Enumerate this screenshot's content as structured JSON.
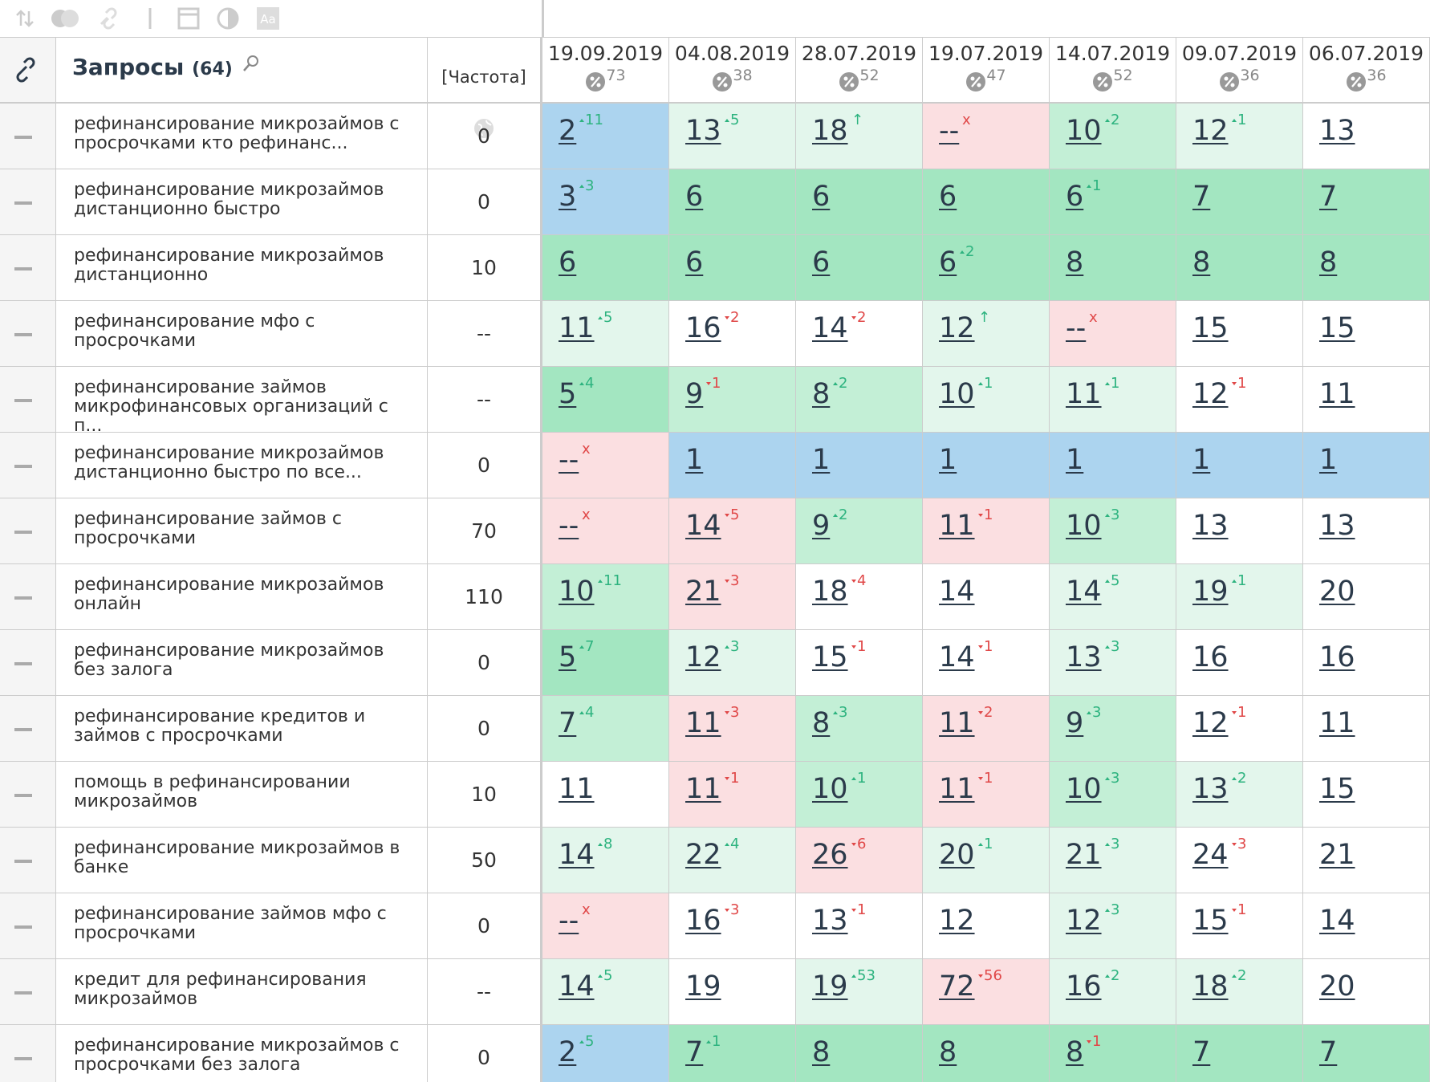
{
  "toolbar": {
    "font_icon": "Aa"
  },
  "header": {
    "queries": "Запросы",
    "count": "(64)",
    "frequency": "[Частота]",
    "dates": [
      {
        "date": "19.09.2019",
        "percent": 73
      },
      {
        "date": "04.08.2019",
        "percent": 38
      },
      {
        "date": "28.07.2019",
        "percent": 52
      },
      {
        "date": "19.07.2019",
        "percent": 47
      },
      {
        "date": "14.07.2019",
        "percent": 52
      },
      {
        "date": "09.07.2019",
        "percent": 36
      },
      {
        "date": "06.07.2019",
        "percent": 36
      }
    ]
  },
  "rows": [
    {
      "query": "рефинансирование микрозаймов с просрочками кто рефинанс...",
      "frequency": 0,
      "cells": [
        {
          "pos": 2,
          "change": 11,
          "dir": "up",
          "bg": "blue"
        },
        {
          "pos": 13,
          "change": 5,
          "dir": "up",
          "bg": "light"
        },
        {
          "pos": 18,
          "change": "↑",
          "dir": "up",
          "bg": "light"
        },
        {
          "pos": "--",
          "change": "x",
          "dir": "down",
          "bg": "red"
        },
        {
          "pos": 10,
          "change": 2,
          "dir": "up",
          "bg": "mid"
        },
        {
          "pos": 12,
          "change": 1,
          "dir": "up",
          "bg": "light"
        },
        {
          "pos": 13,
          "bg": "white"
        }
      ]
    },
    {
      "query": "рефинансирование микрозаймов дистанционно быстро",
      "frequency": 0,
      "cells": [
        {
          "pos": 3,
          "change": 3,
          "dir": "up",
          "bg": "blue"
        },
        {
          "pos": 6,
          "bg": "dark"
        },
        {
          "pos": 6,
          "bg": "dark"
        },
        {
          "pos": 6,
          "bg": "dark"
        },
        {
          "pos": 6,
          "change": 1,
          "dir": "up",
          "bg": "dark"
        },
        {
          "pos": 7,
          "bg": "dark"
        },
        {
          "pos": 7,
          "bg": "dark"
        }
      ]
    },
    {
      "query": "рефинансирование микрозаймов дистанционно",
      "frequency": 10,
      "cells": [
        {
          "pos": 6,
          "bg": "dark"
        },
        {
          "pos": 6,
          "bg": "dark"
        },
        {
          "pos": 6,
          "bg": "dark"
        },
        {
          "pos": 6,
          "change": 2,
          "dir": "up",
          "bg": "dark"
        },
        {
          "pos": 8,
          "bg": "dark"
        },
        {
          "pos": 8,
          "bg": "dark"
        },
        {
          "pos": 8,
          "bg": "dark"
        }
      ]
    },
    {
      "query": "рефинансирование мфо с просрочками",
      "frequency": "--",
      "cells": [
        {
          "pos": 11,
          "change": 5,
          "dir": "up",
          "bg": "light"
        },
        {
          "pos": 16,
          "change": 2,
          "dir": "down",
          "bg": "white"
        },
        {
          "pos": 14,
          "change": 2,
          "dir": "down",
          "bg": "white"
        },
        {
          "pos": 12,
          "change": "↑",
          "dir": "up",
          "bg": "light"
        },
        {
          "pos": "--",
          "change": "x",
          "dir": "down",
          "bg": "red"
        },
        {
          "pos": 15,
          "bg": "white"
        },
        {
          "pos": 15,
          "bg": "white"
        }
      ]
    },
    {
      "query": "рефинансирование займов микрофинансовых организаций с п...",
      "frequency": "--",
      "cells": [
        {
          "pos": 5,
          "change": 4,
          "dir": "up",
          "bg": "dark"
        },
        {
          "pos": 9,
          "change": 1,
          "dir": "down",
          "bg": "mid"
        },
        {
          "pos": 8,
          "change": 2,
          "dir": "up",
          "bg": "mid"
        },
        {
          "pos": 10,
          "change": 1,
          "dir": "up",
          "bg": "light"
        },
        {
          "pos": 11,
          "change": 1,
          "dir": "up",
          "bg": "light"
        },
        {
          "pos": 12,
          "change": 1,
          "dir": "down",
          "bg": "white"
        },
        {
          "pos": 11,
          "bg": "white"
        }
      ]
    },
    {
      "query": "рефинансирование микрозаймов дистанционно быстро по все...",
      "frequency": 0,
      "cells": [
        {
          "pos": "--",
          "change": "x",
          "dir": "down",
          "bg": "red"
        },
        {
          "pos": 1,
          "bg": "blue"
        },
        {
          "pos": 1,
          "bg": "blue"
        },
        {
          "pos": 1,
          "bg": "blue"
        },
        {
          "pos": 1,
          "bg": "blue"
        },
        {
          "pos": 1,
          "bg": "blue"
        },
        {
          "pos": 1,
          "bg": "blue"
        }
      ]
    },
    {
      "query": "рефинансирование займов с просрочками",
      "frequency": 70,
      "cells": [
        {
          "pos": "--",
          "change": "x",
          "dir": "down",
          "bg": "red"
        },
        {
          "pos": 14,
          "change": 5,
          "dir": "down",
          "bg": "red"
        },
        {
          "pos": 9,
          "change": 2,
          "dir": "up",
          "bg": "mid"
        },
        {
          "pos": 11,
          "change": 1,
          "dir": "down",
          "bg": "red"
        },
        {
          "pos": 10,
          "change": 3,
          "dir": "up",
          "bg": "mid"
        },
        {
          "pos": 13,
          "bg": "white"
        },
        {
          "pos": 13,
          "bg": "white"
        }
      ]
    },
    {
      "query": "рефинансирование микрозаймов онлайн",
      "frequency": 110,
      "cells": [
        {
          "pos": 10,
          "change": 11,
          "dir": "up",
          "bg": "mid"
        },
        {
          "pos": 21,
          "change": 3,
          "dir": "down",
          "bg": "red"
        },
        {
          "pos": 18,
          "change": 4,
          "dir": "down",
          "bg": "white"
        },
        {
          "pos": 14,
          "bg": "white"
        },
        {
          "pos": 14,
          "change": 5,
          "dir": "up",
          "bg": "light"
        },
        {
          "pos": 19,
          "change": 1,
          "dir": "up",
          "bg": "light"
        },
        {
          "pos": 20,
          "bg": "white"
        }
      ]
    },
    {
      "query": "рефинансирование микрозаймов без залога",
      "frequency": 0,
      "cells": [
        {
          "pos": 5,
          "change": 7,
          "dir": "up",
          "bg": "dark"
        },
        {
          "pos": 12,
          "change": 3,
          "dir": "up",
          "bg": "light"
        },
        {
          "pos": 15,
          "change": 1,
          "dir": "down",
          "bg": "white"
        },
        {
          "pos": 14,
          "change": 1,
          "dir": "down",
          "bg": "white"
        },
        {
          "pos": 13,
          "change": 3,
          "dir": "up",
          "bg": "light"
        },
        {
          "pos": 16,
          "bg": "white"
        },
        {
          "pos": 16,
          "bg": "white"
        }
      ]
    },
    {
      "query": "рефинансирование кредитов и займов с просрочками",
      "frequency": 0,
      "cells": [
        {
          "pos": 7,
          "change": 4,
          "dir": "up",
          "bg": "mid"
        },
        {
          "pos": 11,
          "change": 3,
          "dir": "down",
          "bg": "red"
        },
        {
          "pos": 8,
          "change": 3,
          "dir": "up",
          "bg": "mid"
        },
        {
          "pos": 11,
          "change": 2,
          "dir": "down",
          "bg": "red"
        },
        {
          "pos": 9,
          "change": 3,
          "dir": "up",
          "bg": "mid"
        },
        {
          "pos": 12,
          "change": 1,
          "dir": "down",
          "bg": "white"
        },
        {
          "pos": 11,
          "bg": "white"
        }
      ]
    },
    {
      "query": "помощь в рефинансировании микрозаймов",
      "frequency": 10,
      "cells": [
        {
          "pos": 11,
          "bg": "white"
        },
        {
          "pos": 11,
          "change": 1,
          "dir": "down",
          "bg": "red"
        },
        {
          "pos": 10,
          "change": 1,
          "dir": "up",
          "bg": "mid"
        },
        {
          "pos": 11,
          "change": 1,
          "dir": "down",
          "bg": "red"
        },
        {
          "pos": 10,
          "change": 3,
          "dir": "up",
          "bg": "mid"
        },
        {
          "pos": 13,
          "change": 2,
          "dir": "up",
          "bg": "light"
        },
        {
          "pos": 15,
          "bg": "white"
        }
      ]
    },
    {
      "query": "рефинансирование микрозаймов в банке",
      "frequency": 50,
      "cells": [
        {
          "pos": 14,
          "change": 8,
          "dir": "up",
          "bg": "light"
        },
        {
          "pos": 22,
          "change": 4,
          "dir": "up",
          "bg": "light"
        },
        {
          "pos": 26,
          "change": 6,
          "dir": "down",
          "bg": "red"
        },
        {
          "pos": 20,
          "change": 1,
          "dir": "up",
          "bg": "light"
        },
        {
          "pos": 21,
          "change": 3,
          "dir": "up",
          "bg": "light"
        },
        {
          "pos": 24,
          "change": 3,
          "dir": "down",
          "bg": "white"
        },
        {
          "pos": 21,
          "bg": "white"
        }
      ]
    },
    {
      "query": "рефинансирование займов мфо с просрочками",
      "frequency": 0,
      "cells": [
        {
          "pos": "--",
          "change": "x",
          "dir": "down",
          "bg": "red"
        },
        {
          "pos": 16,
          "change": 3,
          "dir": "down",
          "bg": "white"
        },
        {
          "pos": 13,
          "change": 1,
          "dir": "down",
          "bg": "white"
        },
        {
          "pos": 12,
          "bg": "white"
        },
        {
          "pos": 12,
          "change": 3,
          "dir": "up",
          "bg": "light"
        },
        {
          "pos": 15,
          "change": 1,
          "dir": "down",
          "bg": "white"
        },
        {
          "pos": 14,
          "bg": "white"
        }
      ]
    },
    {
      "query": "кредит для рефинансирования микрозаймов",
      "frequency": "--",
      "cells": [
        {
          "pos": 14,
          "change": 5,
          "dir": "up",
          "bg": "light"
        },
        {
          "pos": 19,
          "bg": "white"
        },
        {
          "pos": 19,
          "change": 53,
          "dir": "up",
          "bg": "light"
        },
        {
          "pos": 72,
          "change": 56,
          "dir": "down",
          "bg": "red"
        },
        {
          "pos": 16,
          "change": 2,
          "dir": "up",
          "bg": "light"
        },
        {
          "pos": 18,
          "change": 2,
          "dir": "up",
          "bg": "light"
        },
        {
          "pos": 20,
          "bg": "white"
        }
      ]
    },
    {
      "query": "рефинансирование микрозаймов с просрочками без залога",
      "frequency": 0,
      "cells": [
        {
          "pos": 2,
          "change": 5,
          "dir": "up",
          "bg": "blue"
        },
        {
          "pos": 7,
          "change": 1,
          "dir": "up",
          "bg": "dark"
        },
        {
          "pos": 8,
          "bg": "dark"
        },
        {
          "pos": 8,
          "bg": "dark"
        },
        {
          "pos": 8,
          "change": 1,
          "dir": "down",
          "bg": "dark"
        },
        {
          "pos": 7,
          "bg": "dark"
        },
        {
          "pos": 7,
          "bg": "dark"
        }
      ]
    }
  ]
}
